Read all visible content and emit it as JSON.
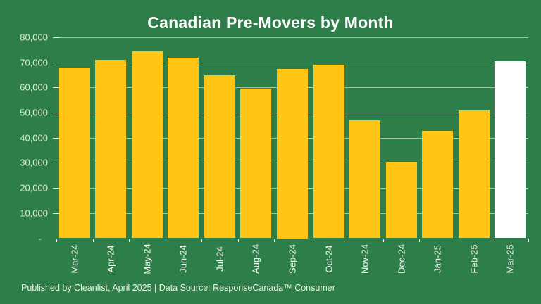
{
  "title": "Canadian Pre-Movers by Month",
  "footer": "Published by Cleanlist, April 2025 | Data Source: ResponseCanada™ Consumer",
  "colors": {
    "background": "#2e7e49",
    "bar": "#ffc414",
    "highlight_bar": "#ffffff",
    "gridline": "rgba(255,255,255,0.55)",
    "axis": "rgba(255,255,255,0.9)",
    "title_text": "#ffffff",
    "ytick_text": "#dcead6",
    "xtick_text": "#f5faf2",
    "footer_text": "#e7f1e2"
  },
  "chart_data": {
    "type": "bar",
    "title": "Canadian Pre-Movers by Month",
    "xlabel": "",
    "ylabel": "",
    "categories": [
      "Mar-24",
      "Apr-24",
      "May-24",
      "Jun-24",
      "Jul-24",
      "Aug-24",
      "Sep-24",
      "Oct-24",
      "Nov-24",
      "Dec-24",
      "Jan-25",
      "Feb-25",
      "Mar-25"
    ],
    "values": [
      68000,
      71000,
      74500,
      72000,
      64800,
      59500,
      67500,
      69000,
      47000,
      30400,
      42700,
      50800,
      70500
    ],
    "highlight_index": 12,
    "ylim": [
      0,
      80000
    ],
    "ytick_step": 10000,
    "ytick_labels": [
      "-",
      "10,000",
      "20,000",
      "30,000",
      "40,000",
      "50,000",
      "60,000",
      "70,000",
      "80,000"
    ],
    "grid": true,
    "legend": "none",
    "xtick_rotation": -90
  }
}
